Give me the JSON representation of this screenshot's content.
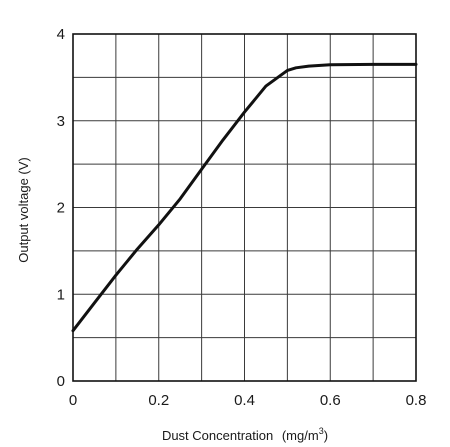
{
  "chart_data": {
    "type": "line",
    "xlabel_main": "Dust Concentration",
    "xlabel_unit_prefix": "(mg/m",
    "xlabel_unit_exp": "3",
    "xlabel_unit_suffix": ")",
    "ylabel": "Output voltage (V)",
    "xlim": [
      0,
      0.8
    ],
    "ylim": [
      0,
      4
    ],
    "x_ticks": [
      "0",
      "0.2",
      "0.4",
      "0.6",
      "0.8"
    ],
    "y_ticks": [
      "0",
      "1",
      "2",
      "3",
      "4"
    ],
    "grid": true,
    "grid_step_x": 0.1,
    "grid_step_y": 0.5,
    "series": [
      {
        "color": "#111111",
        "x": [
          0,
          0.05,
          0.1,
          0.15,
          0.2,
          0.25,
          0.3,
          0.35,
          0.4,
          0.45,
          0.5,
          0.52,
          0.55,
          0.6,
          0.7,
          0.8
        ],
        "y": [
          0.58,
          0.9,
          1.22,
          1.52,
          1.8,
          2.1,
          2.44,
          2.78,
          3.1,
          3.4,
          3.58,
          3.61,
          3.63,
          3.645,
          3.65,
          3.65
        ]
      }
    ]
  }
}
